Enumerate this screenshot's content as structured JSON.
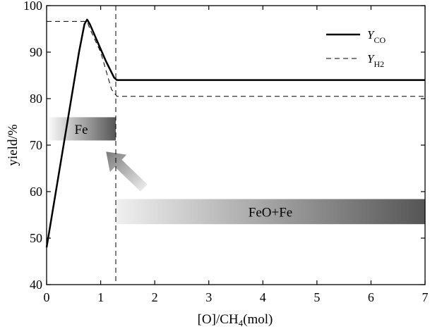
{
  "chart_data": {
    "type": "line",
    "xlabel_main": "[O]/CH",
    "xlabel_sub": "4",
    "xlabel_tail": "(mol)",
    "ylabel": "yield/%",
    "xlim": [
      0,
      7
    ],
    "ylim": [
      40,
      100
    ],
    "xticks": [
      "0",
      "1",
      "2",
      "3",
      "4",
      "5",
      "6",
      "7"
    ],
    "yticks": [
      "40",
      "50",
      "60",
      "70",
      "80",
      "90",
      "100"
    ],
    "grid": false,
    "legend_position": "top-right",
    "series": [
      {
        "name_main": "Y",
        "name_sub": "CO",
        "style": "solid",
        "x": [
          0,
          0.2,
          0.4,
          0.6,
          0.7,
          0.75,
          0.8,
          0.95,
          1.1,
          1.25,
          1.3,
          1.4,
          2,
          3,
          4,
          5,
          6,
          7
        ],
        "y": [
          48,
          62,
          76,
          90,
          96,
          97,
          96,
          92,
          88,
          84.5,
          84,
          84,
          84,
          84,
          84,
          84,
          84,
          84
        ]
      },
      {
        "name_main": "Y",
        "name_sub": "H2",
        "style": "dashed",
        "x": [
          0,
          0.7,
          0.75,
          0.8,
          1.0,
          1.2,
          1.3,
          2,
          3,
          4,
          5,
          6,
          7
        ],
        "y": [
          96.6,
          96.6,
          96.6,
          95,
          90,
          82,
          80.5,
          80.5,
          80.5,
          80.5,
          80.5,
          80.5,
          80.5
        ]
      }
    ],
    "annotations": {
      "vline_x": 1.28,
      "regions": [
        {
          "label": "Fe",
          "x0": 0,
          "x1": 1.28,
          "y0": 71,
          "y1": 76,
          "from": "#ffffff",
          "to": "#555555"
        },
        {
          "label": "FeO+Fe",
          "x0": 1.28,
          "x1": 7,
          "y0": 53,
          "y1": 58.4,
          "from": "#f0f0f0",
          "to": "#555555"
        }
      ],
      "arrow": {
        "from": [
          1.8,
          60.8
        ],
        "to": [
          1.1,
          68.6
        ]
      }
    }
  }
}
